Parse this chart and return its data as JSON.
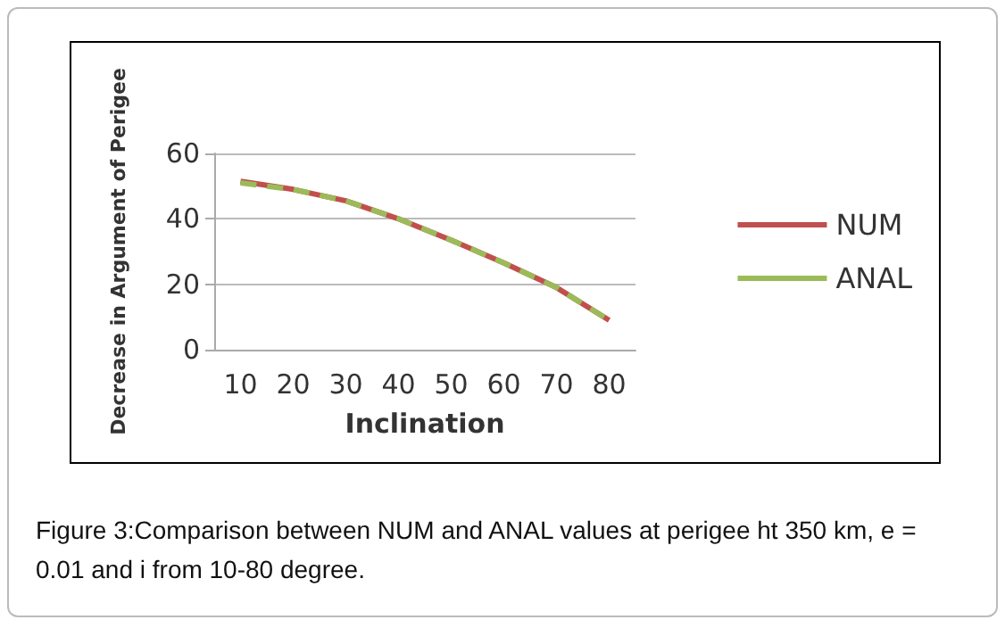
{
  "chart_data": {
    "type": "line",
    "xlabel": "Inclination",
    "ylabel": "Decrease in Argument of Perigee",
    "categories": [
      "10",
      "20",
      "30",
      "40",
      "50",
      "60",
      "70",
      "80"
    ],
    "series": [
      {
        "name": "NUM",
        "color": "#c0504d",
        "line_style": "solid",
        "values": [
          51.5,
          49,
          45.5,
          40,
          33.5,
          26.5,
          19,
          9
        ]
      },
      {
        "name": "ANAL",
        "color": "#9bbb59",
        "line_style": "dashed",
        "values": [
          51,
          49,
          45.5,
          40,
          33.5,
          26.5,
          19,
          9
        ]
      }
    ],
    "ylim": [
      0,
      60
    ],
    "yticks": [
      0,
      20,
      40,
      60
    ],
    "grid": "y",
    "legend": "right",
    "marker": "none",
    "annotations": [
      "Figure 3:Comparison between NUM and ANAL values at perigee ht 350 km, e = 0.01 and i from 10-80 degree."
    ]
  }
}
